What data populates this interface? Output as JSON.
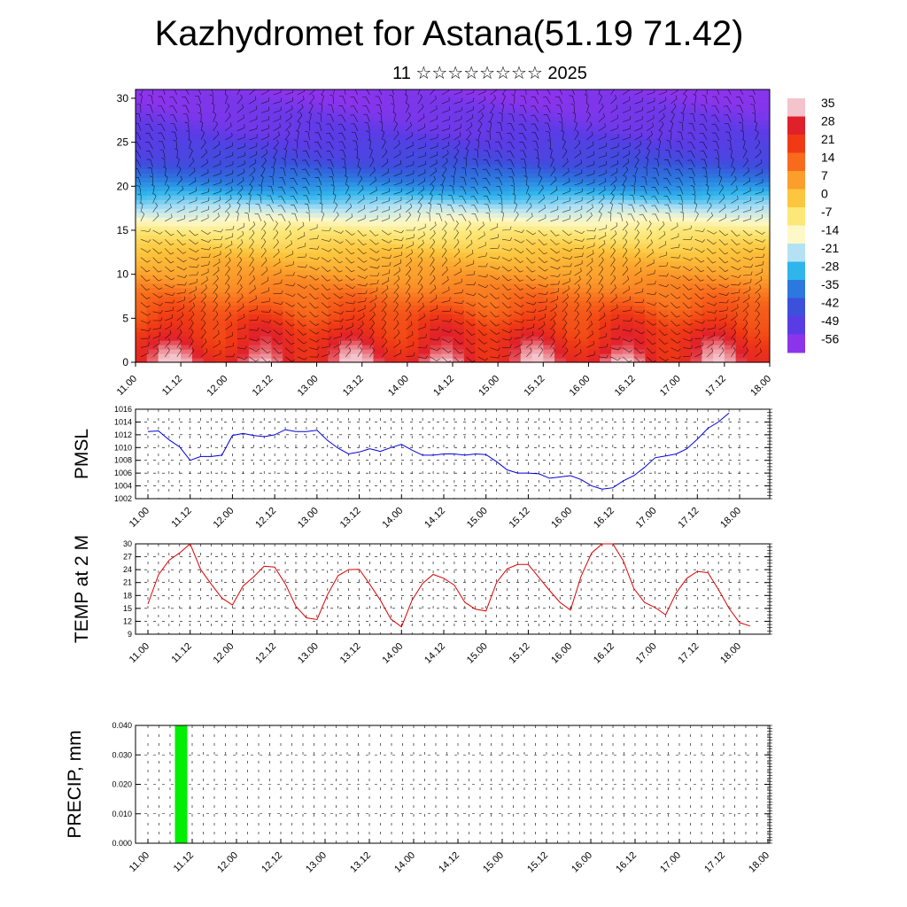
{
  "header": {
    "title": "Kazhydromet for Astana(51.19 71.42)",
    "subtitle": "11 ☆☆☆☆☆☆☆☆ 2025"
  },
  "colors": {
    "pmsl_line": "#0000dd",
    "temp_line": "#dd0000",
    "precip_bar": "#00ee00",
    "frame": "#000000"
  },
  "chart_data": [
    {
      "id": "cross_section",
      "type": "heatmap",
      "title": "",
      "xlabel": "",
      "ylabel": "",
      "x_ticks": [
        "11.00",
        "11.12",
        "12.00",
        "12.12",
        "13.00",
        "13.12",
        "14.00",
        "14.12",
        "15.00",
        "15.12",
        "16.00",
        "16.12",
        "17.00",
        "17.12",
        "18.00"
      ],
      "y_ticks": [
        0,
        5,
        10,
        15,
        20,
        25,
        30
      ],
      "ylim": [
        0,
        31
      ],
      "colorbar_labels": [
        "35",
        "28",
        "21",
        "14",
        "7",
        "0",
        "-7",
        "-14",
        "-21",
        "-28",
        "-35",
        "-42",
        "-49",
        "-56"
      ],
      "colorbar_colors": [
        "#f4c4cc",
        "#e0202a",
        "#f03a14",
        "#f86a1c",
        "#fb9e2c",
        "#fcc63e",
        "#fce878",
        "#fdf8c8",
        "#b4e2f4",
        "#30b4ec",
        "#2c78de",
        "#3c50dc",
        "#5a3ce6",
        "#8c34ec"
      ],
      "temperature_profile": [
        {
          "h": 0,
          "t": 30
        },
        {
          "h": 4,
          "t": 22
        },
        {
          "h": 8,
          "t": 12
        },
        {
          "h": 12,
          "t": 2
        },
        {
          "h": 15,
          "t": -8
        },
        {
          "h": 17,
          "t": -18
        },
        {
          "h": 20,
          "t": -32
        },
        {
          "h": 23,
          "t": -44
        },
        {
          "h": 26,
          "t": -50
        },
        {
          "h": 31,
          "t": -56
        }
      ],
      "grid": false,
      "overlay": "wind barbs"
    },
    {
      "id": "pmsl",
      "type": "line",
      "ylabel": "PMSL",
      "ylim": [
        1002,
        1016
      ],
      "y_ticks": [
        1002,
        1004,
        1006,
        1008,
        1010,
        1012,
        1014,
        1016
      ],
      "x_ticks": [
        "11.00",
        "11.12",
        "12.00",
        "12.12",
        "13.00",
        "13.12",
        "14.00",
        "14.12",
        "15.00",
        "15.12",
        "16.00",
        "16.12",
        "17.00",
        "17.12",
        "18.00"
      ],
      "x_step_hours": 3,
      "grid": true,
      "values": [
        1012.5,
        1012.6,
        1011.2,
        1010.1,
        1008.0,
        1008.6,
        1008.6,
        1008.8,
        1011.9,
        1012.2,
        1011.9,
        1011.7,
        1012.0,
        1012.8,
        1012.5,
        1012.5,
        1012.7,
        1011.1,
        1009.9,
        1009.0,
        1009.3,
        1009.8,
        1009.4,
        1010.0,
        1010.5,
        1009.6,
        1008.8,
        1008.8,
        1009.0,
        1009.0,
        1008.8,
        1009.0,
        1008.9,
        1007.8,
        1006.5,
        1006.0,
        1006.0,
        1005.9,
        1005.2,
        1005.4,
        1005.6,
        1005.0,
        1004.0,
        1003.5,
        1003.7,
        1004.8,
        1005.6,
        1006.9,
        1008.4,
        1008.7,
        1009.0,
        1009.8,
        1011.3,
        1013.0,
        1014.0,
        1015.4
      ]
    },
    {
      "id": "temp2m",
      "type": "line",
      "ylabel": "TEMP at 2 M",
      "ylim": [
        9,
        30
      ],
      "y_ticks": [
        9,
        12,
        15,
        18,
        21,
        24,
        27,
        30
      ],
      "x_ticks": [
        "11.00",
        "11.12",
        "12.00",
        "12.12",
        "13.00",
        "13.12",
        "14.00",
        "14.12",
        "15.00",
        "15.12",
        "16.00",
        "16.12",
        "17.00",
        "17.12",
        "18.00"
      ],
      "x_step_hours": 3,
      "grid": true,
      "values": [
        16.0,
        22.8,
        26.2,
        27.9,
        30.0,
        24.0,
        20.6,
        17.4,
        15.8,
        20.2,
        22.3,
        24.8,
        24.6,
        20.7,
        15.5,
        12.8,
        12.4,
        18.2,
        22.6,
        24.0,
        24.1,
        20.6,
        16.9,
        12.5,
        10.7,
        16.9,
        20.8,
        22.9,
        22.0,
        20.4,
        16.4,
        14.8,
        14.4,
        21.0,
        24.2,
        25.2,
        25.2,
        22.2,
        19.2,
        16.4,
        14.6,
        22.5,
        27.9,
        30.0,
        30.0,
        26.0,
        19.6,
        16.4,
        15.2,
        13.5,
        18.6,
        22.0,
        23.6,
        23.3,
        19.4,
        15.0,
        11.7,
        10.9
      ]
    },
    {
      "id": "precip",
      "type": "bar",
      "ylabel": "PRECIP, mm",
      "ylim": [
        0,
        0.04
      ],
      "y_ticks": [
        "0.000",
        "0.010",
        "0.020",
        "0.030",
        "0.040"
      ],
      "x_ticks": [
        "11.00",
        "11.12",
        "12.00",
        "12.12",
        "13.00",
        "13.12",
        "14.00",
        "14.12",
        "15.00",
        "15.12",
        "16.00",
        "16.12",
        "17.00",
        "17.12",
        "18.00"
      ],
      "grid": true,
      "bars": [
        {
          "x_hours": 9,
          "value": 0.04
        }
      ]
    }
  ]
}
